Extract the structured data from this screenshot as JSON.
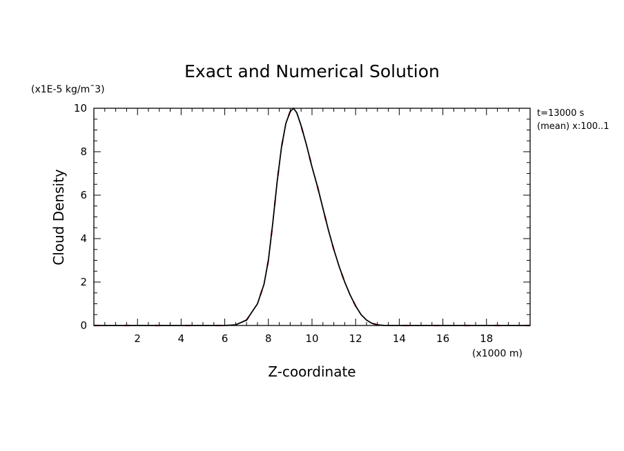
{
  "chart_data": {
    "type": "line",
    "title": "Exact and Numerical Solution",
    "xlabel": "Z-coordinate",
    "ylabel": "Cloud Density",
    "x_unit": "(x1000 m)",
    "y_unit": "(x1E-5 kg/m¯3)",
    "xlim": [
      0,
      20
    ],
    "ylim": [
      0,
      10
    ],
    "x_ticks": [
      2,
      4,
      6,
      8,
      10,
      12,
      14,
      16,
      18
    ],
    "y_ticks": [
      0,
      2,
      4,
      6,
      8,
      10
    ],
    "annotation_lines": [
      "t=13000 s",
      "(mean) x:100..1"
    ],
    "grid": false,
    "series": [
      {
        "color": "#ff0000",
        "style": "dashed",
        "x": [
          0,
          6,
          6.5,
          7,
          7.5,
          7.8,
          8.0,
          8.2,
          8.4,
          8.6,
          8.8,
          9.0,
          9.15,
          9.3,
          9.5,
          9.75,
          10.0,
          10.25,
          10.5,
          10.75,
          11.0,
          11.25,
          11.5,
          11.75,
          12.0,
          12.25,
          12.5,
          12.75,
          13.0,
          13.3,
          13.6,
          20
        ],
        "y": [
          0,
          0,
          0.03,
          0.25,
          1.0,
          1.9,
          3.0,
          4.7,
          6.6,
          8.2,
          9.3,
          9.85,
          10.0,
          9.8,
          9.2,
          8.3,
          7.3,
          6.4,
          5.4,
          4.4,
          3.5,
          2.7,
          2.0,
          1.4,
          0.9,
          0.5,
          0.25,
          0.1,
          0.03,
          0.005,
          0,
          0
        ]
      },
      {
        "color": "#000000",
        "style": "solid",
        "x": [
          0,
          6,
          6.5,
          7,
          7.5,
          7.8,
          8.0,
          8.2,
          8.4,
          8.6,
          8.8,
          9.0,
          9.15,
          9.3,
          9.5,
          9.75,
          10.0,
          10.25,
          10.5,
          10.75,
          11.0,
          11.25,
          11.5,
          11.75,
          12.0,
          12.25,
          12.5,
          12.75,
          13.0,
          13.3,
          13.6,
          20
        ],
        "y": [
          0,
          0,
          0.03,
          0.25,
          1.0,
          1.9,
          3.0,
          4.7,
          6.6,
          8.2,
          9.3,
          9.85,
          10.0,
          9.8,
          9.2,
          8.3,
          7.3,
          6.4,
          5.4,
          4.4,
          3.5,
          2.7,
          2.0,
          1.4,
          0.9,
          0.5,
          0.25,
          0.1,
          0.03,
          0.005,
          0,
          0
        ]
      }
    ]
  }
}
